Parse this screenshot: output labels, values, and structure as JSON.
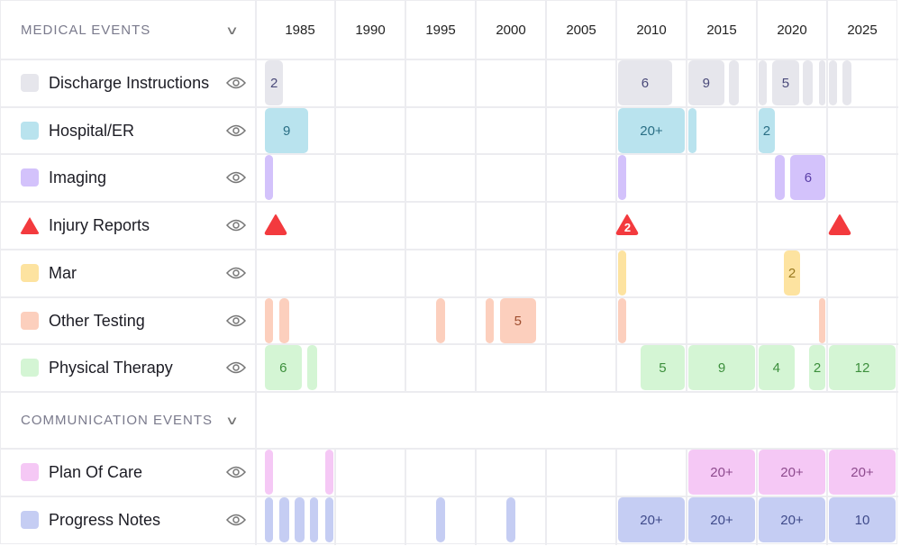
{
  "sections": [
    {
      "title": "MEDICAL EVENTS",
      "expanded": true
    },
    {
      "title": "COMMUNICATION EVENTS",
      "expanded": true
    }
  ],
  "years": [
    "1985",
    "1990",
    "1995",
    "2000",
    "2005",
    "2010",
    "2015",
    "2020",
    "2025"
  ],
  "rows": [
    {
      "name": "Discharge Instructions",
      "section": 0,
      "icon": "square",
      "color": "#e6e6ec",
      "text": "#4a4a7a",
      "visible_icon": "eye-icon",
      "events": [
        [
          1982.5,
          1983.8,
          "2"
        ],
        [
          2007.6,
          2011.5,
          "6"
        ],
        [
          2012.6,
          2015.2,
          "9"
        ],
        [
          2015.5,
          2016.2,
          ""
        ],
        [
          2017.6,
          2018.2,
          ""
        ],
        [
          2018.6,
          2020.5,
          "5"
        ],
        [
          2020.8,
          2021.5,
          ""
        ],
        [
          2021.9,
          2022.4,
          ""
        ],
        [
          2022.6,
          2023.2,
          ""
        ],
        [
          2023.6,
          2024.2,
          ""
        ]
      ]
    },
    {
      "name": "Hospital/ER",
      "section": 0,
      "icon": "square",
      "color": "#b9e3ee",
      "text": "#2a6f85",
      "visible_icon": "eye-icon",
      "events": [
        [
          1982.5,
          1985.6,
          "9"
        ],
        [
          2007.6,
          2012.4,
          "20+"
        ],
        [
          2012.6,
          2013.2,
          ""
        ],
        [
          2017.6,
          2018.8,
          "2"
        ]
      ]
    },
    {
      "name": "Imaging",
      "section": 0,
      "icon": "square",
      "color": "#d3c2fb",
      "text": "#5b3fa8",
      "visible_icon": "eye-icon",
      "events": [
        [
          1982.5,
          1983.1,
          ""
        ],
        [
          2007.6,
          2008.2,
          ""
        ],
        [
          2018.8,
          2019.5,
          ""
        ],
        [
          2019.9,
          2022.4,
          "6"
        ]
      ]
    },
    {
      "name": "Injury Reports",
      "section": 0,
      "icon": "triangle",
      "color": "#f33a3e",
      "text": "#ffffff",
      "visible_icon": "eye-icon",
      "points": [
        [
          1983.3,
          ""
        ],
        [
          2008.3,
          "2"
        ],
        [
          2023.4,
          ""
        ]
      ]
    },
    {
      "name": "Mar",
      "section": 0,
      "icon": "square",
      "color": "#fde3a0",
      "text": "#9a7a20",
      "visible_icon": "eye-icon",
      "events": [
        [
          2007.6,
          2008.2,
          ""
        ],
        [
          2019.4,
          2020.6,
          "2"
        ]
      ]
    },
    {
      "name": "Other Testing",
      "section": 0,
      "icon": "square",
      "color": "#fccfbd",
      "text": "#a04f30",
      "visible_icon": "eye-icon",
      "events": [
        [
          1982.5,
          1983.1,
          ""
        ],
        [
          1983.5,
          1984.2,
          ""
        ],
        [
          1994.7,
          1995.3,
          ""
        ],
        [
          1998.2,
          1998.8,
          ""
        ],
        [
          1999.2,
          2001.8,
          "5"
        ],
        [
          2007.6,
          2008.2,
          ""
        ],
        [
          2021.9,
          2022.4,
          ""
        ]
      ]
    },
    {
      "name": "Physical Therapy",
      "section": 0,
      "icon": "square",
      "color": "#d4f5d4",
      "text": "#3c8f3c",
      "visible_icon": "eye-icon",
      "events": [
        [
          1982.5,
          1985.1,
          "6"
        ],
        [
          1985.5,
          1986.2,
          ""
        ],
        [
          2009.2,
          2012.4,
          "5"
        ],
        [
          2012.6,
          2017.4,
          "9"
        ],
        [
          2017.6,
          2020.2,
          "4"
        ],
        [
          2021.2,
          2022.4,
          "2"
        ],
        [
          2022.6,
          2027.4,
          "12"
        ]
      ]
    },
    {
      "name": "Plan Of Care",
      "section": 1,
      "icon": "square",
      "color": "#f5c8f5",
      "text": "#8e4a8e",
      "visible_icon": "eye-icon",
      "events": [
        [
          1982.5,
          1983.1,
          ""
        ],
        [
          1986.8,
          1987.4,
          ""
        ],
        [
          2012.6,
          2017.4,
          "20+"
        ],
        [
          2017.6,
          2022.4,
          "20+"
        ],
        [
          2022.6,
          2027.4,
          "20+"
        ]
      ]
    },
    {
      "name": "Progress Notes",
      "section": 1,
      "icon": "square",
      "color": "#c5cdf3",
      "text": "#3f4a8a",
      "visible_icon": "eye-icon",
      "events": [
        [
          1982.5,
          1983.1,
          ""
        ],
        [
          1983.5,
          1984.2,
          ""
        ],
        [
          1984.6,
          1985.3,
          ""
        ],
        [
          1985.7,
          1986.3,
          ""
        ],
        [
          1986.8,
          1987.4,
          ""
        ],
        [
          1994.7,
          1995.3,
          ""
        ],
        [
          1999.7,
          2000.3,
          ""
        ],
        [
          2007.6,
          2012.4,
          "20+"
        ],
        [
          2012.6,
          2017.4,
          "20+"
        ],
        [
          2017.6,
          2022.4,
          "20+"
        ],
        [
          2022.6,
          2027.4,
          "10"
        ]
      ]
    }
  ]
}
